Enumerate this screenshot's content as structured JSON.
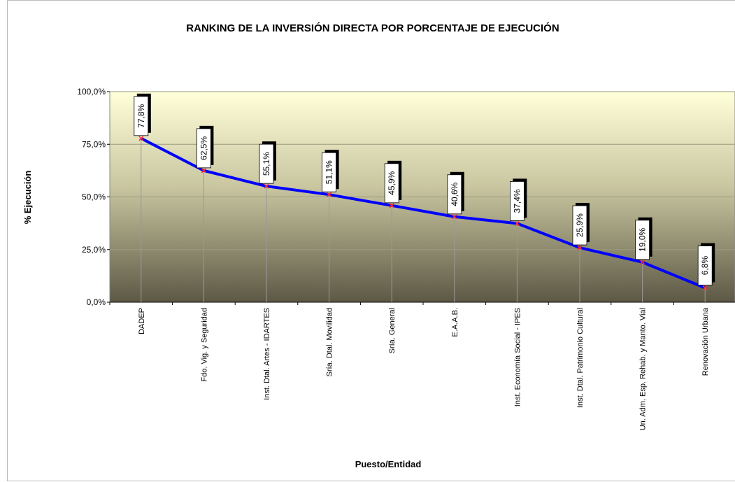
{
  "chart_data": {
    "type": "line",
    "title": "RANKING DE LA INVERSIÓN DIRECTA POR PORCENTAJE DE EJECUCIÓN",
    "x_label": "Puesto/Entidad",
    "y_label": "% Ejecución",
    "categories": [
      "DADEP",
      "Fdo. Vig. y Seguridad",
      "Inst. Dtal. Artes - IDARTES",
      "Sría. Dtal. Movilidad",
      "Sría. General",
      "E.A.A.B.",
      "Inst. Economía Social - IPES",
      "Inst. Dtal. Patrimonio Cultural",
      "Un. Adm. Esp. Rehab. y Manto. Vial",
      "Renovación Urbana"
    ],
    "values": [
      77.8,
      62.5,
      55.1,
      51.1,
      45.9,
      40.6,
      37.4,
      25.9,
      19.0,
      6.8
    ],
    "value_labels": [
      "77,8%",
      "62,5%",
      "55,1%",
      "51,1%",
      "45,9%",
      "40,6%",
      "37,4%",
      "25,9%",
      "19,0%",
      "6,8%"
    ],
    "color": "#0000ff",
    "ylim": [
      0,
      100
    ],
    "yticks": [
      {
        "value": 0,
        "label": "0,0%"
      },
      {
        "value": 25,
        "label": "25,0%"
      },
      {
        "value": 50,
        "label": "50,0%"
      },
      {
        "value": 75,
        "label": "75,0%"
      },
      {
        "value": 100,
        "label": "100,0%"
      }
    ],
    "grid": true
  }
}
